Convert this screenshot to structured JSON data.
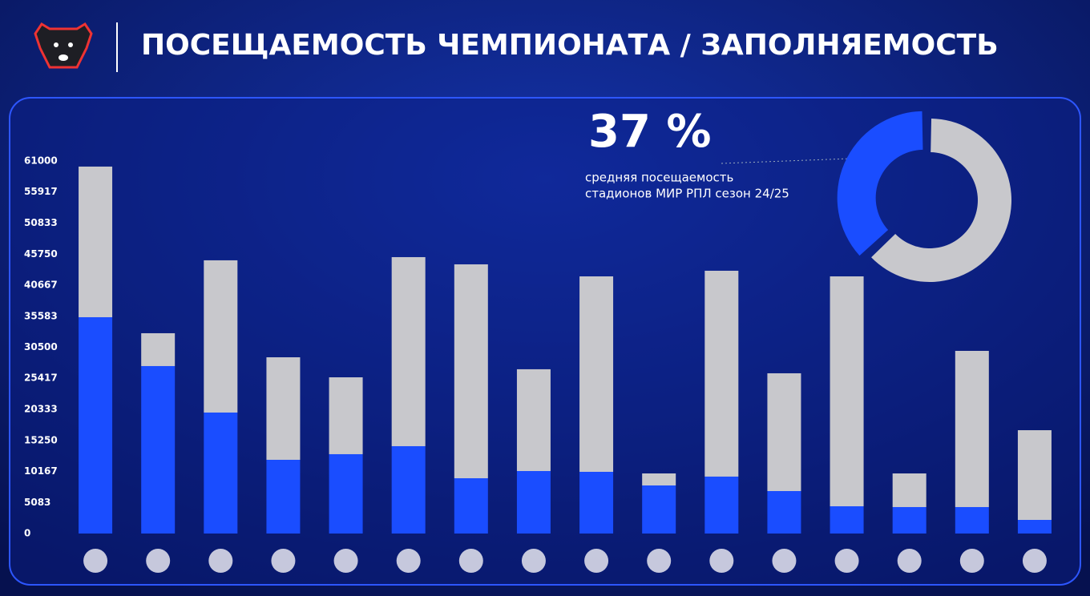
{
  "title": "ПОСЕЩАЕМОСТЬ ЧЕМПИОНАТА / ЗАПОЛНЯЕМОСТЬ",
  "chart_data": [
    {
      "type": "bar",
      "stacked": true,
      "categories": [
        null,
        null,
        null,
        null,
        null,
        null,
        null,
        null,
        null,
        null,
        null,
        null,
        null,
        null,
        null,
        null
      ],
      "series": [
        {
          "color": "#1a4dff",
          "values": [
            35420,
            27420,
            19810,
            12070,
            12990,
            14300,
            9050,
            10230,
            10100,
            7870,
            9320,
            6950,
            4460,
            4330,
            4330,
            2230
          ]
        },
        {
          "color": "#c8c8cc",
          "values": [
            24670,
            5380,
            24930,
            16790,
            12590,
            30960,
            35030,
            16670,
            32010,
            1970,
            33710,
            19290,
            37650,
            5510,
            25580,
            14690
          ]
        }
      ],
      "ylim": [
        0,
        61000
      ],
      "yticks": [
        0,
        5083,
        10167,
        15250,
        20333,
        25417,
        30500,
        35583,
        40667,
        45750,
        50833,
        55917,
        61000
      ],
      "grid": false
    },
    {
      "type": "pie",
      "donut": true,
      "big_label": "37 %",
      "subtitle": [
        "средняя посещаемость",
        "стадионов МИР РПЛ сезон 24/25"
      ],
      "values": [
        37,
        63
      ],
      "colors": [
        "#1a4dff",
        "#c8c8cc"
      ]
    }
  ]
}
